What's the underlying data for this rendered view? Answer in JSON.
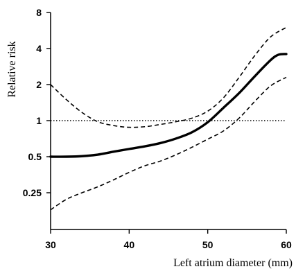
{
  "chart_data": {
    "type": "line",
    "xlabel": "Left atrium diameter (mm)",
    "ylabel": "Relative risk",
    "y_scale": "log2",
    "xlim": [
      30,
      60
    ],
    "ylim": [
      0.178,
      8
    ],
    "x_ticks": [
      30,
      40,
      50,
      60
    ],
    "y_ticks": [
      0.25,
      0.5,
      1,
      2,
      4,
      8
    ],
    "x_tick_labels": [
      "30",
      "40",
      "50",
      "60"
    ],
    "y_tick_labels": [
      "0.25",
      "0.5",
      "1",
      "2",
      "4",
      "8"
    ],
    "reference_line": {
      "y": 1,
      "style": "dotted"
    },
    "series": [
      {
        "role": "estimate",
        "style": "solid",
        "x": [
          30,
          32,
          34,
          36,
          38,
          40,
          42,
          44,
          46,
          48,
          50,
          52,
          54,
          56,
          58,
          59,
          60
        ],
        "y": [
          0.5,
          0.5,
          0.505,
          0.52,
          0.55,
          0.58,
          0.61,
          0.65,
          0.71,
          0.8,
          0.97,
          1.28,
          1.7,
          2.35,
          3.2,
          3.55,
          3.6
        ]
      },
      {
        "role": "upper_ci",
        "style": "dashed",
        "x": [
          30,
          32,
          34,
          36,
          38,
          40,
          42,
          44,
          46,
          48,
          50,
          52,
          54,
          56,
          58,
          60
        ],
        "y": [
          2.0,
          1.5,
          1.17,
          0.98,
          0.91,
          0.88,
          0.89,
          0.93,
          0.98,
          1.05,
          1.2,
          1.55,
          2.3,
          3.5,
          5.0,
          6.0
        ]
      },
      {
        "role": "lower_ci",
        "style": "dashed",
        "x": [
          30,
          32,
          34,
          36,
          38,
          40,
          42,
          44,
          46,
          48,
          50,
          52,
          54,
          56,
          58,
          60
        ],
        "y": [
          0.18,
          0.22,
          0.25,
          0.28,
          0.32,
          0.37,
          0.42,
          0.46,
          0.52,
          0.6,
          0.7,
          0.82,
          1.05,
          1.45,
          1.95,
          2.3
        ]
      }
    ]
  }
}
